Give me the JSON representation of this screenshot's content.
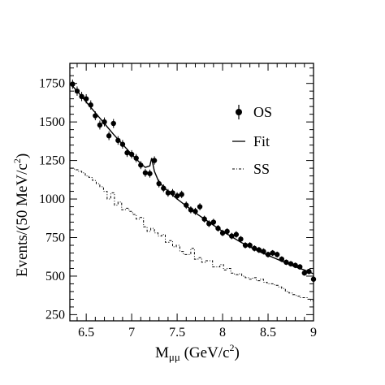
{
  "chart_data": {
    "type": "scatter",
    "xlabel": {
      "main": "M",
      "sub": "μμ",
      "rest": " (GeV/c",
      "sup": "2",
      "close": ")"
    },
    "ylabel": {
      "main": "Events/(50 MeV/c",
      "sup": "2",
      "close": ")"
    },
    "xlim": [
      6.32,
      9.0
    ],
    "ylim": [
      210,
      1880
    ],
    "xticks": [
      6.5,
      7,
      7.5,
      8,
      8.5,
      9
    ],
    "xtick_labels": [
      "6.5",
      "7",
      "7.5",
      "8",
      "8.5",
      "9"
    ],
    "yticks": [
      250,
      500,
      750,
      1000,
      1250,
      1500,
      1750
    ],
    "ytick_labels": [
      "250",
      "500",
      "750",
      "1000",
      "1250",
      "1500",
      "1750"
    ],
    "grid": false,
    "legend": {
      "placement": "top-right",
      "entries": [
        {
          "key": "os",
          "label": "OS",
          "style": "points-with-errorbars"
        },
        {
          "key": "fit",
          "label": "Fit",
          "style": "solid-line"
        },
        {
          "key": "ss",
          "label": "SS",
          "style": "dashed-step"
        }
      ]
    },
    "series": [
      {
        "name": "OS",
        "style": "points",
        "x": [
          6.35,
          6.4,
          6.45,
          6.5,
          6.55,
          6.6,
          6.65,
          6.7,
          6.75,
          6.8,
          6.85,
          6.9,
          6.95,
          7.0,
          7.05,
          7.1,
          7.15,
          7.2,
          7.25,
          7.3,
          7.35,
          7.4,
          7.45,
          7.5,
          7.55,
          7.6,
          7.65,
          7.7,
          7.75,
          7.8,
          7.85,
          7.9,
          7.95,
          8.0,
          8.05,
          8.1,
          8.15,
          8.2,
          8.25,
          8.3,
          8.35,
          8.4,
          8.45,
          8.5,
          8.55,
          8.6,
          8.65,
          8.7,
          8.75,
          8.8,
          8.85,
          8.9,
          8.95,
          9.0
        ],
        "y": [
          1745,
          1700,
          1665,
          1650,
          1610,
          1540,
          1480,
          1500,
          1410,
          1490,
          1380,
          1355,
          1300,
          1290,
          1265,
          1220,
          1170,
          1165,
          1250,
          1100,
          1070,
          1040,
          1040,
          1020,
          1030,
          960,
          930,
          920,
          950,
          870,
          840,
          850,
          810,
          780,
          790,
          760,
          770,
          740,
          700,
          700,
          680,
          670,
          660,
          640,
          650,
          640,
          610,
          590,
          580,
          570,
          560,
          520,
          530,
          480
        ],
        "err": [
          30,
          30,
          30,
          30,
          30,
          29,
          29,
          29,
          28,
          29,
          28,
          28,
          27,
          27,
          27,
          26,
          26,
          26,
          27,
          25,
          25,
          25,
          25,
          24,
          24,
          24,
          23,
          23,
          23,
          22,
          22,
          22,
          21,
          21,
          21,
          21,
          21,
          20,
          20,
          20,
          20,
          20,
          20,
          19,
          19,
          19,
          19,
          18,
          18,
          18,
          18,
          17,
          17,
          16
        ]
      },
      {
        "name": "Fit",
        "style": "line",
        "x": [
          6.33,
          6.4,
          6.5,
          6.6,
          6.7,
          6.8,
          6.9,
          7.0,
          7.1,
          7.15,
          7.2,
          7.22,
          7.25,
          7.3,
          7.4,
          7.5,
          7.6,
          7.7,
          7.8,
          7.9,
          8.0,
          8.1,
          8.2,
          8.3,
          8.4,
          8.5,
          8.6,
          8.7,
          8.8,
          8.9,
          9.0
        ],
        "y": [
          1745,
          1700,
          1630,
          1560,
          1490,
          1420,
          1355,
          1290,
          1230,
          1205,
          1215,
          1265,
          1180,
          1110,
          1050,
          1000,
          955,
          910,
          870,
          830,
          790,
          755,
          720,
          690,
          660,
          635,
          610,
          585,
          560,
          540,
          515
        ]
      },
      {
        "name": "SS",
        "style": "step",
        "x": [
          6.33,
          6.37,
          6.41,
          6.45,
          6.49,
          6.53,
          6.57,
          6.61,
          6.65,
          6.69,
          6.73,
          6.77,
          6.81,
          6.85,
          6.89,
          6.93,
          6.97,
          7.01,
          7.05,
          7.09,
          7.13,
          7.17,
          7.21,
          7.25,
          7.29,
          7.33,
          7.37,
          7.41,
          7.45,
          7.49,
          7.53,
          7.57,
          7.61,
          7.65,
          7.69,
          7.73,
          7.77,
          7.81,
          7.85,
          7.89,
          7.93,
          7.97,
          8.01,
          8.05,
          8.09,
          8.13,
          8.17,
          8.21,
          8.25,
          8.29,
          8.33,
          8.37,
          8.41,
          8.45,
          8.49,
          8.53,
          8.57,
          8.61,
          8.65,
          8.69,
          8.73,
          8.77,
          8.81,
          8.85,
          8.89,
          8.93,
          8.97
        ],
        "y": [
          1200,
          1190,
          1180,
          1170,
          1150,
          1140,
          1120,
          1100,
          1080,
          1050,
          1000,
          1040,
          960,
          980,
          930,
          940,
          920,
          900,
          870,
          880,
          820,
          790,
          810,
          780,
          760,
          770,
          720,
          730,
          690,
          700,
          660,
          640,
          640,
          680,
          610,
          620,
          590,
          600,
          600,
          560,
          560,
          575,
          540,
          550,
          520,
          510,
          515,
          500,
          490,
          480,
          490,
          470,
          480,
          460,
          450,
          450,
          440,
          430,
          420,
          400,
          390,
          380,
          370,
          360,
          360,
          350,
          340
        ]
      }
    ]
  }
}
